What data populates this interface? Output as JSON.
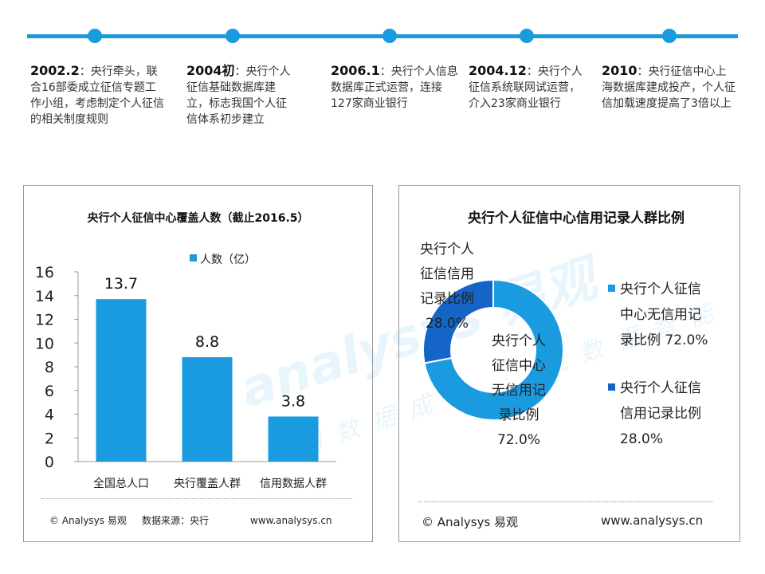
{
  "timeline": [
    {
      "date": "2002.2",
      "sep": "：",
      "text": "央行牵头，联合16部委成立征信专题工作小组，考虑制定个人征信的相关制度规则"
    },
    {
      "date": "2004初",
      "sep": "：",
      "text": "央行个人征信基础数据库建立，标志我国个人征信体系初步建立"
    },
    {
      "date": "2006.1",
      "sep": "：",
      "text": "央行个人信息数据库正式运营，连接127家商业银行"
    },
    {
      "date": "2004.12",
      "sep": "：",
      "text": "央行个人征信系统联网试运营，介入23家商业银行"
    },
    {
      "date": "2010",
      "sep": "：",
      "text": "央行征信中心上海数据库建成投产，个人征信加载速度提高了3倍以上"
    }
  ],
  "left_footer": {
    "copyright": "© Analysys 易观",
    "source": "数据来源：央行",
    "url": "www.analysys.cn"
  },
  "right_footer": {
    "copyright": "© Analysys  易观",
    "url": "www.analysys.cn"
  },
  "watermark": {
    "brand": "analysys 易观",
    "slogan": "用数据成长 · 让数据智能"
  },
  "colors": {
    "accent": "#1a9be0",
    "light_blue": "#1a9be0",
    "dark_blue": "#1565c8"
  },
  "chart_data": [
    {
      "type": "bar",
      "title": "央行个人征信中心覆盖人数（截止2016.5）",
      "categories": [
        "全国总人口",
        "央行覆盖人群",
        "信用数据人群"
      ],
      "series": [
        {
          "name": "人数（亿）",
          "values": [
            13.7,
            8.8,
            3.8
          ]
        }
      ],
      "data_labels": [
        "13.7",
        "8.8",
        "3.8"
      ],
      "ylim": [
        0,
        16
      ],
      "yticks": [
        0,
        2,
        4,
        6,
        8,
        10,
        12,
        14,
        16
      ],
      "xlabel": "",
      "ylabel": "",
      "legend_position": "top-center"
    },
    {
      "type": "pie",
      "title": "央行个人征信中心信用记录人群比例",
      "labels": [
        "央行个人征信中心无信用记录比例",
        "央行个人征信信用记录比例"
      ],
      "values": [
        72.0,
        28.0
      ],
      "data_labels": [
        {
          "lines": [
            "央行个人",
            "征信中心",
            "无信用记",
            "录比例",
            "72.0%"
          ]
        },
        {
          "lines": [
            "央行个人",
            "征信信用",
            "记录比例",
            "28.0%"
          ]
        }
      ],
      "legend": [
        {
          "lines": [
            "央行个人征信",
            "中心无信用记",
            "录比例  72.0%"
          ]
        },
        {
          "lines": [
            "央行个人征信",
            "信用记录比例",
            "28.0%"
          ]
        }
      ],
      "legend_position": "right"
    }
  ]
}
